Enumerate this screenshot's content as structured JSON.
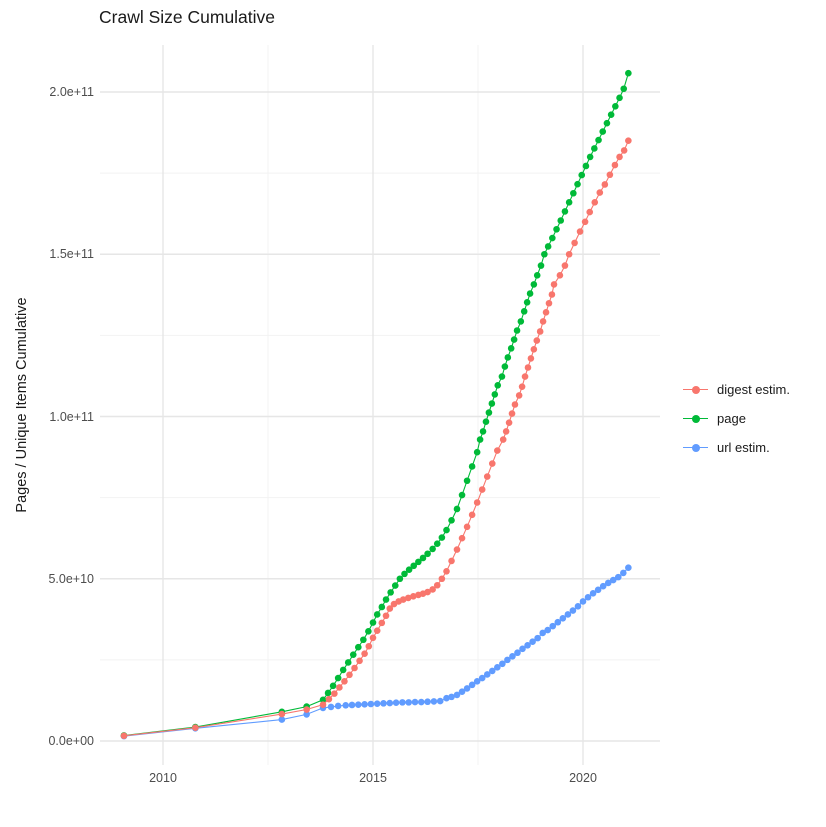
{
  "title": "Crawl Size Cumulative",
  "chart_data": {
    "type": "scatter",
    "title": "Crawl Size Cumulative",
    "xlabel": "",
    "ylabel": "Pages / Unique Items Cumulative",
    "x_ticks": [
      {
        "label": "2010",
        "year": 2010
      },
      {
        "label": "2015",
        "year": 2015
      },
      {
        "label": "2020",
        "year": 2020
      }
    ],
    "x_minor_gridlines": [
      2012.5,
      2017.5
    ],
    "y_ticks": [
      {
        "label": "0.0e+00",
        "value": 0
      },
      {
        "label": "5.0e+10",
        "value": 50
      },
      {
        "label": "1.0e+11",
        "value": 100
      },
      {
        "label": "1.5e+11",
        "value": 150
      },
      {
        "label": "2.0e+11",
        "value": 200
      }
    ],
    "y_minor_gridlines": [
      25,
      75,
      125,
      175
    ],
    "value_scale": 1000000000.0,
    "xlim": [
      2008.5,
      2021.85
    ],
    "ylim": [
      -7,
      214
    ],
    "grid": true,
    "legend_position": "right",
    "major_grid_color": "#e6e6e6",
    "minor_grid_color": "#f2f2f2",
    "background_color": "#ffffff",
    "legend_order": [
      "digest estim.",
      "page",
      "url estim."
    ],
    "series": [
      {
        "name": "url estim.",
        "color": "#619CFF",
        "points": [
          [
            2009.07,
            1.5
          ],
          [
            2010.77,
            3.9
          ],
          [
            2012.83,
            6.6
          ],
          [
            2013.42,
            8.2
          ],
          [
            2013.81,
            10.2
          ],
          [
            2014.0,
            10.5
          ],
          [
            2014.17,
            10.8
          ],
          [
            2014.35,
            11.0
          ],
          [
            2014.5,
            11.1
          ],
          [
            2014.65,
            11.2
          ],
          [
            2014.8,
            11.3
          ],
          [
            2014.95,
            11.4
          ],
          [
            2015.1,
            11.5
          ],
          [
            2015.25,
            11.6
          ],
          [
            2015.4,
            11.7
          ],
          [
            2015.55,
            11.8
          ],
          [
            2015.7,
            11.9
          ],
          [
            2015.85,
            11.9
          ],
          [
            2016.0,
            12.0
          ],
          [
            2016.15,
            12.0
          ],
          [
            2016.3,
            12.1
          ],
          [
            2016.45,
            12.2
          ],
          [
            2016.6,
            12.3
          ],
          [
            2016.75,
            13.2
          ],
          [
            2016.87,
            13.6
          ],
          [
            2017.0,
            14.2
          ],
          [
            2017.12,
            15.2
          ],
          [
            2017.24,
            16.2
          ],
          [
            2017.36,
            17.3
          ],
          [
            2017.48,
            18.4
          ],
          [
            2017.6,
            19.4
          ],
          [
            2017.72,
            20.5
          ],
          [
            2017.84,
            21.6
          ],
          [
            2017.96,
            22.7
          ],
          [
            2018.08,
            23.8
          ],
          [
            2018.2,
            25.0
          ],
          [
            2018.32,
            26.1
          ],
          [
            2018.44,
            27.2
          ],
          [
            2018.56,
            28.4
          ],
          [
            2018.68,
            29.5
          ],
          [
            2018.8,
            30.6
          ],
          [
            2018.92,
            31.7
          ],
          [
            2019.04,
            33.3
          ],
          [
            2019.16,
            34.2
          ],
          [
            2019.28,
            35.4
          ],
          [
            2019.4,
            36.6
          ],
          [
            2019.52,
            37.8
          ],
          [
            2019.64,
            39.0
          ],
          [
            2019.76,
            40.2
          ],
          [
            2019.88,
            41.5
          ],
          [
            2020.0,
            43.0
          ],
          [
            2020.12,
            44.3
          ],
          [
            2020.24,
            45.5
          ],
          [
            2020.36,
            46.6
          ],
          [
            2020.48,
            47.7
          ],
          [
            2020.6,
            48.7
          ],
          [
            2020.72,
            49.6
          ],
          [
            2020.84,
            50.5
          ],
          [
            2020.96,
            51.8
          ],
          [
            2021.08,
            53.4
          ]
        ]
      },
      {
        "name": "page",
        "color": "#00BA38",
        "points": [
          [
            2009.07,
            1.7
          ],
          [
            2010.77,
            4.3
          ],
          [
            2012.83,
            9.0
          ],
          [
            2013.42,
            10.6
          ],
          [
            2013.81,
            12.7
          ],
          [
            2013.93,
            14.8
          ],
          [
            2014.05,
            17.0
          ],
          [
            2014.17,
            19.4
          ],
          [
            2014.29,
            21.9
          ],
          [
            2014.41,
            24.2
          ],
          [
            2014.53,
            26.6
          ],
          [
            2014.65,
            28.9
          ],
          [
            2014.77,
            31.2
          ],
          [
            2014.89,
            33.8
          ],
          [
            2015.0,
            36.5
          ],
          [
            2015.1,
            39.0
          ],
          [
            2015.21,
            41.3
          ],
          [
            2015.31,
            43.6
          ],
          [
            2015.42,
            45.8
          ],
          [
            2015.53,
            47.9
          ],
          [
            2015.64,
            50.0
          ],
          [
            2015.75,
            51.5
          ],
          [
            2015.86,
            52.8
          ],
          [
            2015.97,
            54.0
          ],
          [
            2016.08,
            55.2
          ],
          [
            2016.19,
            56.4
          ],
          [
            2016.3,
            57.7
          ],
          [
            2016.42,
            59.2
          ],
          [
            2016.53,
            60.8
          ],
          [
            2016.64,
            62.7
          ],
          [
            2016.75,
            65.0
          ],
          [
            2016.87,
            68.0
          ],
          [
            2017.0,
            71.5
          ],
          [
            2017.12,
            75.8
          ],
          [
            2017.24,
            80.2
          ],
          [
            2017.36,
            84.6
          ],
          [
            2017.48,
            89.0
          ],
          [
            2017.55,
            92.9
          ],
          [
            2017.62,
            95.4
          ],
          [
            2017.69,
            98.4
          ],
          [
            2017.76,
            101.2
          ],
          [
            2017.83,
            104.0
          ],
          [
            2017.9,
            106.8
          ],
          [
            2017.97,
            109.6
          ],
          [
            2018.07,
            112.3
          ],
          [
            2018.14,
            115.4
          ],
          [
            2018.21,
            118.2
          ],
          [
            2018.29,
            121.0
          ],
          [
            2018.36,
            123.7
          ],
          [
            2018.43,
            126.5
          ],
          [
            2018.52,
            129.3
          ],
          [
            2018.6,
            132.4
          ],
          [
            2018.67,
            135.2
          ],
          [
            2018.74,
            137.9
          ],
          [
            2018.83,
            140.7
          ],
          [
            2018.91,
            143.5
          ],
          [
            2019.0,
            146.5
          ],
          [
            2019.08,
            150.0
          ],
          [
            2019.17,
            152.4
          ],
          [
            2019.27,
            155.0
          ],
          [
            2019.37,
            157.7
          ],
          [
            2019.47,
            160.4
          ],
          [
            2019.57,
            163.2
          ],
          [
            2019.67,
            166.0
          ],
          [
            2019.77,
            168.8
          ],
          [
            2019.87,
            171.6
          ],
          [
            2019.97,
            174.4
          ],
          [
            2020.07,
            177.2
          ],
          [
            2020.17,
            180.0
          ],
          [
            2020.27,
            182.6
          ],
          [
            2020.37,
            185.2
          ],
          [
            2020.47,
            187.8
          ],
          [
            2020.57,
            190.4
          ],
          [
            2020.67,
            193.0
          ],
          [
            2020.77,
            195.6
          ],
          [
            2020.87,
            198.2
          ],
          [
            2020.97,
            201.0
          ],
          [
            2021.08,
            205.8
          ]
        ]
      },
      {
        "name": "digest estim.",
        "color": "#F8766D",
        "points": [
          [
            2009.07,
            1.6
          ],
          [
            2010.77,
            4.1
          ],
          [
            2012.83,
            8.3
          ],
          [
            2013.42,
            9.7
          ],
          [
            2013.81,
            11.2
          ],
          [
            2013.95,
            12.9
          ],
          [
            2014.08,
            14.6
          ],
          [
            2014.2,
            16.5
          ],
          [
            2014.32,
            18.4
          ],
          [
            2014.44,
            20.4
          ],
          [
            2014.56,
            22.5
          ],
          [
            2014.68,
            24.7
          ],
          [
            2014.8,
            26.9
          ],
          [
            2014.9,
            29.2
          ],
          [
            2015.0,
            31.8
          ],
          [
            2015.1,
            34.0
          ],
          [
            2015.21,
            36.4
          ],
          [
            2015.31,
            38.6
          ],
          [
            2015.4,
            40.8
          ],
          [
            2015.5,
            42.2
          ],
          [
            2015.61,
            43.0
          ],
          [
            2015.72,
            43.6
          ],
          [
            2015.84,
            44.1
          ],
          [
            2015.96,
            44.6
          ],
          [
            2016.08,
            45.0
          ],
          [
            2016.19,
            45.4
          ],
          [
            2016.3,
            45.9
          ],
          [
            2016.42,
            46.7
          ],
          [
            2016.53,
            48.0
          ],
          [
            2016.64,
            50.0
          ],
          [
            2016.75,
            52.3
          ],
          [
            2016.87,
            55.5
          ],
          [
            2017.0,
            59.0
          ],
          [
            2017.12,
            62.5
          ],
          [
            2017.24,
            66.0
          ],
          [
            2017.36,
            69.7
          ],
          [
            2017.48,
            73.5
          ],
          [
            2017.6,
            77.5
          ],
          [
            2017.72,
            81.5
          ],
          [
            2017.84,
            85.5
          ],
          [
            2017.96,
            89.5
          ],
          [
            2018.1,
            92.9
          ],
          [
            2018.17,
            95.4
          ],
          [
            2018.24,
            98.1
          ],
          [
            2018.31,
            100.9
          ],
          [
            2018.38,
            103.7
          ],
          [
            2018.48,
            106.5
          ],
          [
            2018.55,
            109.2
          ],
          [
            2018.62,
            112.3
          ],
          [
            2018.69,
            115.1
          ],
          [
            2018.76,
            117.9
          ],
          [
            2018.83,
            120.7
          ],
          [
            2018.9,
            123.4
          ],
          [
            2018.98,
            126.2
          ],
          [
            2019.05,
            129.3
          ],
          [
            2019.12,
            132.1
          ],
          [
            2019.19,
            134.9
          ],
          [
            2019.26,
            137.6
          ],
          [
            2019.31,
            140.7
          ],
          [
            2019.45,
            143.5
          ],
          [
            2019.57,
            146.5
          ],
          [
            2019.67,
            150.0
          ],
          [
            2019.8,
            153.5
          ],
          [
            2019.93,
            157.0
          ],
          [
            2020.05,
            160.0
          ],
          [
            2020.16,
            163.0
          ],
          [
            2020.28,
            166.0
          ],
          [
            2020.4,
            169.0
          ],
          [
            2020.52,
            171.5
          ],
          [
            2020.64,
            174.5
          ],
          [
            2020.76,
            177.5
          ],
          [
            2020.87,
            180.0
          ],
          [
            2020.98,
            182.0
          ],
          [
            2021.08,
            185.0
          ]
        ]
      }
    ]
  }
}
